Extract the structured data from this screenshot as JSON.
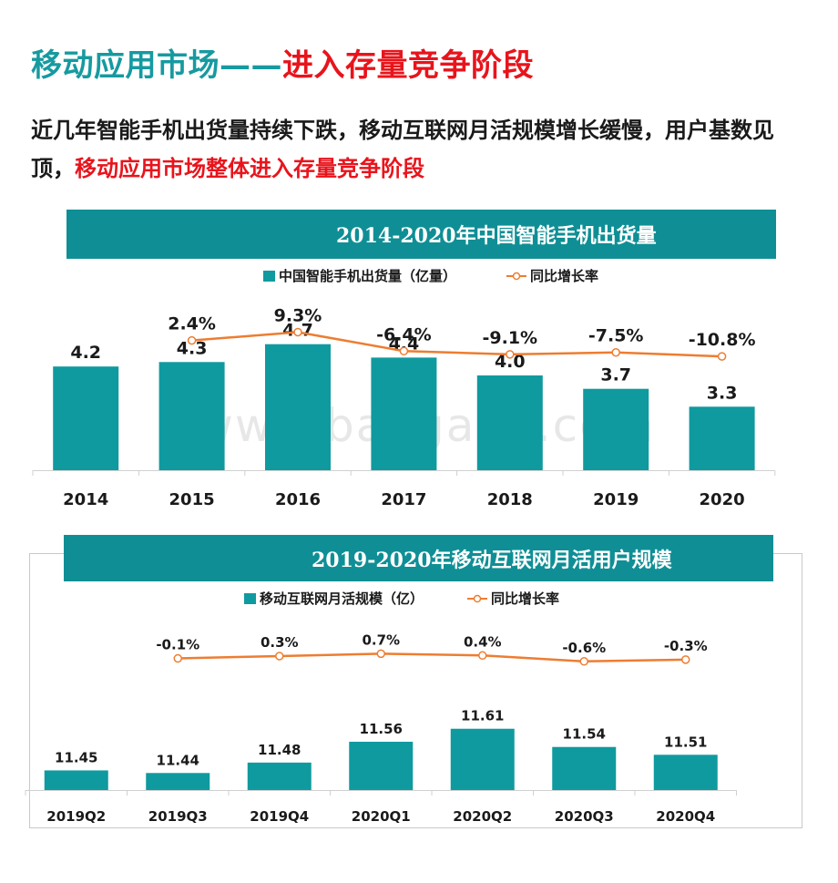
{
  "header": {
    "title_part1": "移动应用市场——",
    "title_part2": "进入存量竞争阶段",
    "subtitle_part1": "近几年智能手机出货量持续下跌，移动互联网月活规模增长缓慢，用户基数见顶，",
    "subtitle_part2": "移动应用市场整体进入存量竞争阶段"
  },
  "watermark": "www.baogao8.com",
  "colors": {
    "bar": "#0f9a9f",
    "line": "#ed7d31",
    "banner": "#0f8f95",
    "title_teal": "#169aa0",
    "accent_red": "#e8141c"
  },
  "chart_data": [
    {
      "type": "bar",
      "title": "2014-2020年中国智能手机出货量",
      "categories": [
        "2014",
        "2015",
        "2016",
        "2017",
        "2018",
        "2019",
        "2020"
      ],
      "series": [
        {
          "name": "中国智能手机出货量（亿量）",
          "type": "bar",
          "values": [
            4.2,
            4.3,
            4.7,
            4.4,
            4.0,
            3.7,
            3.3
          ],
          "labels": [
            "4.2",
            "4.3",
            "4.7",
            "4.4",
            "4.0",
            "3.7",
            "3.3"
          ]
        },
        {
          "name": "同比增长率",
          "type": "line",
          "values": [
            null,
            2.4,
            9.3,
            -6.4,
            -9.1,
            -7.5,
            -10.8
          ],
          "labels": [
            "",
            "2.4%",
            "9.3%",
            "-6.4%",
            "-9.1%",
            "-7.5%",
            "-10.8%"
          ]
        }
      ],
      "legend_position": "top-center",
      "grid": false
    },
    {
      "type": "bar",
      "title": "2019-2020年移动互联网月活用户规模",
      "categories": [
        "2019Q2",
        "2019Q3",
        "2019Q4",
        "2020Q1",
        "2020Q2",
        "2020Q3",
        "2020Q4"
      ],
      "series": [
        {
          "name": "移动互联网月活规模（亿）",
          "type": "bar",
          "values": [
            11.45,
            11.44,
            11.48,
            11.56,
            11.61,
            11.54,
            11.51
          ],
          "labels": [
            "11.45",
            "11.44",
            "11.48",
            "11.56",
            "11.61",
            "11.54",
            "11.51"
          ]
        },
        {
          "name": "同比增长率",
          "type": "line",
          "values": [
            null,
            -0.1,
            0.3,
            0.7,
            0.4,
            -0.6,
            -0.3
          ],
          "labels": [
            "",
            "-0.1%",
            "0.3%",
            "0.7%",
            "0.4%",
            "-0.6%",
            "-0.3%"
          ]
        }
      ],
      "legend_position": "top-center",
      "grid": false
    }
  ]
}
